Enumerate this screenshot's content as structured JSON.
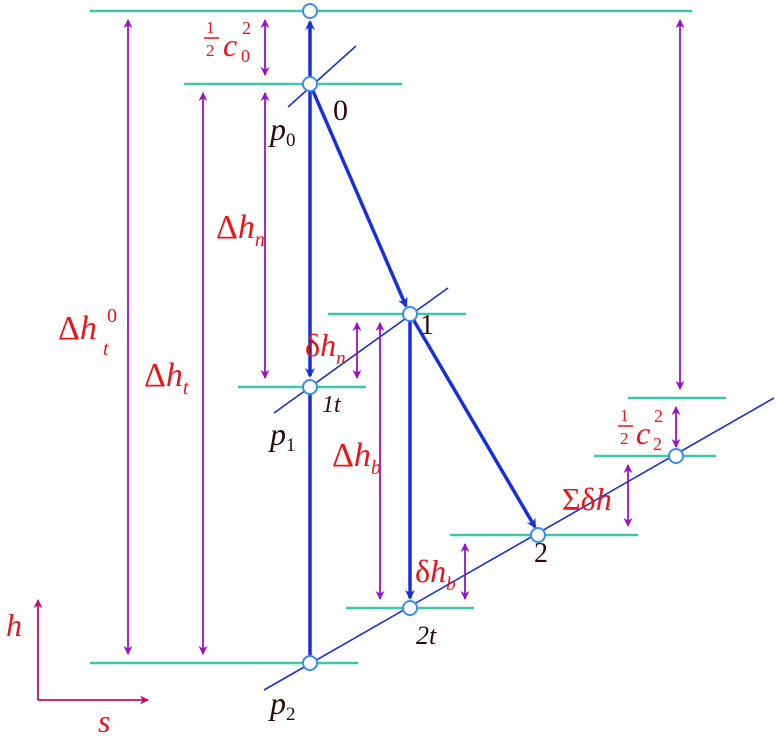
{
  "colors": {
    "level_line": "#3cc8a8",
    "isobar": "#1a2fd6",
    "process": "#1a2fd6",
    "dimension": "#9a10c8",
    "label_red": "#e8141b",
    "label_dark": "#2a0a0a",
    "axis": "#c0106a",
    "point": "#3a8cf0"
  },
  "points": {
    "state_0": "0",
    "state_1": "1",
    "state_1t": "1t",
    "state_2": "2",
    "state_2t": "2t"
  },
  "isobars": {
    "p0": {
      "sym": "p",
      "sub": "0"
    },
    "p1": {
      "sym": "p",
      "sub": "1"
    },
    "p2": {
      "sym": "p",
      "sub": "2"
    }
  },
  "labels": {
    "half_c0_sq": {
      "frac_num": "1",
      "frac_den": "2",
      "sym": "c",
      "sub": "0",
      "sup": "2"
    },
    "delta_hn": {
      "pre": "Δ",
      "sym": "h",
      "sub": "n"
    },
    "delta_ht0": {
      "pre": "Δ",
      "sym": "h",
      "sub": "t",
      "sup": "0"
    },
    "delta_ht": {
      "pre": "Δ",
      "sym": "h",
      "sub": "t"
    },
    "delta_hb": {
      "pre": "Δ",
      "sym": "h",
      "sub": "b"
    },
    "small_delta_hn": {
      "pre": "δ",
      "sym": "h",
      "sub": "n"
    },
    "small_delta_hb": {
      "pre": "δ",
      "sym": "h",
      "sub": "b"
    },
    "half_c2_sq": {
      "frac_num": "1",
      "frac_den": "2",
      "sym": "c",
      "sub": "2",
      "sup": "2"
    },
    "sum_delta_h": {
      "pre": "Σδ",
      "sym": "h"
    }
  },
  "axes": {
    "vertical": "h",
    "horizontal": "s"
  }
}
